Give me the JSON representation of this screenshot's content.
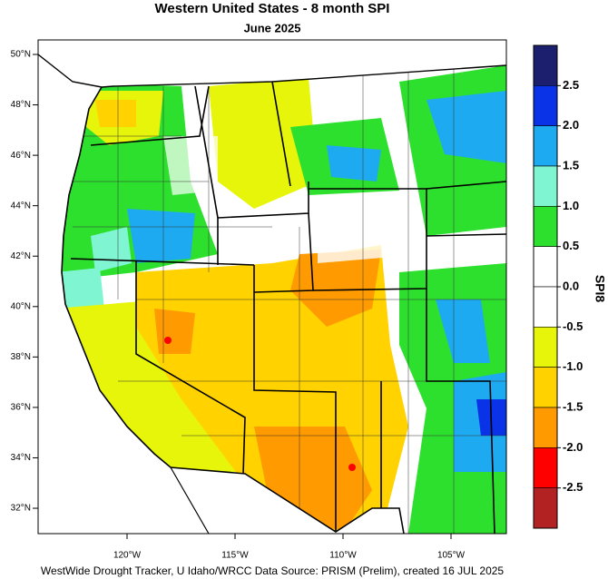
{
  "title": "Western United States - 8 month SPI",
  "subtitle": "June 2025",
  "lat_ticks": [
    {
      "value": 50,
      "label": "50°N"
    },
    {
      "value": 48,
      "label": "48°N"
    },
    {
      "value": 46,
      "label": "46°N"
    },
    {
      "value": 44,
      "label": "44°N"
    },
    {
      "value": 42,
      "label": "42°N"
    },
    {
      "value": 40,
      "label": "40°N"
    },
    {
      "value": 38,
      "label": "38°N"
    },
    {
      "value": 36,
      "label": "36°N"
    },
    {
      "value": 34,
      "label": "34°N"
    },
    {
      "value": 32,
      "label": "32°N"
    }
  ],
  "lon_ticks": [
    {
      "value": -120,
      "label": "120°W"
    },
    {
      "value": -115,
      "label": "115°W"
    },
    {
      "value": -110,
      "label": "110°W"
    },
    {
      "value": -105,
      "label": "105°W"
    }
  ],
  "colorbar": {
    "label": "SPI8",
    "clim": [
      -3,
      3
    ],
    "colors": [
      "#1b1f6e",
      "#0a33e8",
      "#1eaaf0",
      "#80f5d2",
      "#2ee02e",
      "#ffffff",
      "#ffffff",
      "#e6f50a",
      "#ffd200",
      "#ff9a00",
      "#ff0000",
      "#b22222"
    ],
    "ticks": [
      2.5,
      {
        "value": 2,
        "label": "2.0"
      },
      1.5,
      {
        "value": 1,
        "label": "1.0"
      },
      0.5,
      {
        "value": 0,
        "label": "0.0"
      },
      -0.5,
      {
        "value": -1,
        "label": "-1.0"
      },
      -1.5,
      {
        "value": -2,
        "label": "-2.0"
      },
      -2.5
    ]
  },
  "footer": "WestWide Drought Tracker, U Idaho/WRCC Data Source: PRISM (Prelim), created 16 JUL 2025"
}
